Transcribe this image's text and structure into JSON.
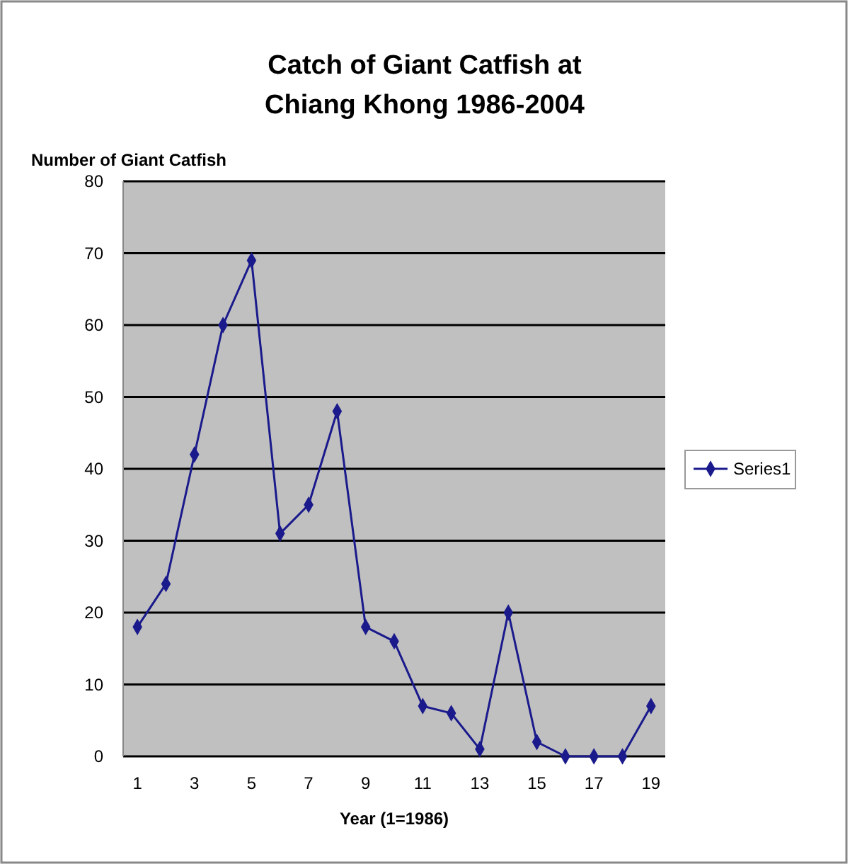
{
  "chart_data": {
    "type": "line",
    "title": "Catch of Giant Catfish at Chiang Khong 1986-2004",
    "xlabel": "Year (1=1986)",
    "ylabel": "Number of Giant Catfish",
    "x": [
      1,
      2,
      3,
      4,
      5,
      6,
      7,
      8,
      9,
      10,
      11,
      12,
      13,
      14,
      15,
      16,
      17,
      18,
      19
    ],
    "series": [
      {
        "name": "Series1",
        "color": "#1a1a8c",
        "values": [
          18,
          24,
          42,
          60,
          69,
          31,
          35,
          48,
          18,
          16,
          7,
          6,
          1,
          20,
          2,
          0,
          0,
          0,
          7
        ]
      }
    ],
    "xlim": [
      0.5,
      19.5
    ],
    "xticks": [
      1,
      3,
      5,
      7,
      9,
      11,
      13,
      15,
      17,
      19
    ],
    "ylim": [
      0,
      80
    ],
    "yticks": [
      0,
      10,
      20,
      30,
      40,
      50,
      60,
      70,
      80
    ],
    "grid": "y",
    "legend": "right",
    "marker": "diamond"
  }
}
